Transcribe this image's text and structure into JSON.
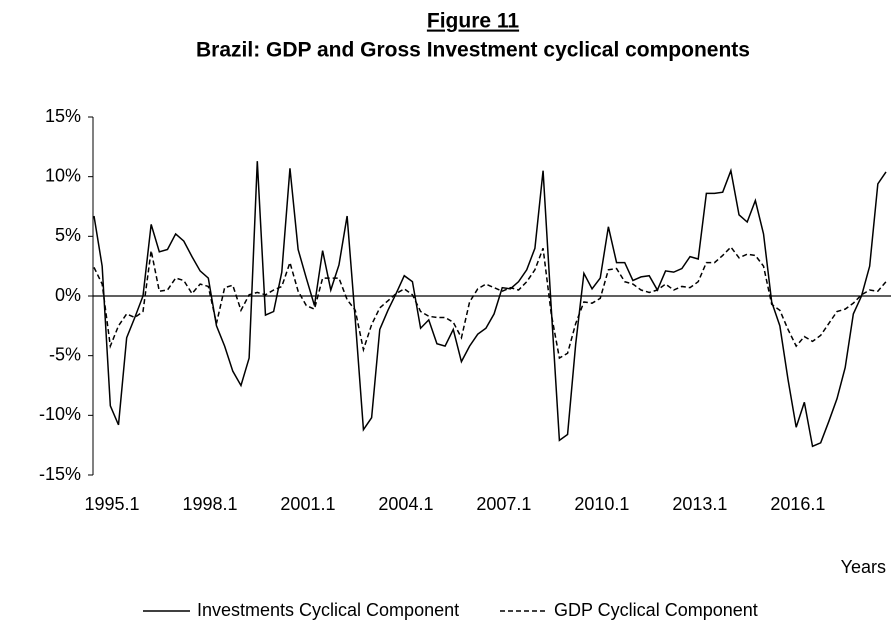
{
  "chart_data": {
    "type": "line",
    "title": "Figure 11",
    "subtitle": "Brazil: GDP and Gross Investment cyclical components",
    "x_label": "Years",
    "categories": [
      "1995.1",
      null,
      null,
      null,
      null,
      null,
      null,
      null,
      null,
      null,
      null,
      null,
      "1998.1",
      null,
      null,
      null,
      null,
      null,
      null,
      null,
      null,
      null,
      null,
      null,
      "2001.1",
      null,
      null,
      null,
      null,
      null,
      null,
      null,
      null,
      null,
      null,
      null,
      "2004.1",
      null,
      null,
      null,
      null,
      null,
      null,
      null,
      null,
      null,
      null,
      null,
      "2007.1",
      null,
      null,
      null,
      null,
      null,
      null,
      null,
      null,
      null,
      null,
      null,
      "2010.1",
      null,
      null,
      null,
      null,
      null,
      null,
      null,
      null,
      null,
      null,
      null,
      "2013.1",
      null,
      null,
      null,
      null,
      null,
      null,
      null,
      null,
      null,
      null,
      null,
      "2016.1",
      null,
      null,
      null,
      null,
      null,
      null,
      null,
      null,
      null,
      null,
      null,
      null,
      null
    ],
    "series": [
      {
        "name": "Investments Cyclical Component",
        "color": "#000000",
        "dash": "solid",
        "values": [
          6.7,
          2.5,
          -9.2,
          -10.8,
          -3.5,
          -1.8,
          0,
          6.0,
          3.7,
          3.9,
          5.2,
          4.6,
          3.3,
          2.1,
          1.5,
          -2.5,
          -4.2,
          -6.3,
          -7.5,
          -5.2,
          11.3,
          -1.6,
          -1.3,
          2.0,
          10.7,
          3.9,
          1.5,
          -0.8,
          3.8,
          0.5,
          2.6,
          6.7,
          -2,
          -11.2,
          -10.2,
          -2.8,
          -1.2,
          0.2,
          1.7,
          1.2,
          -2.7,
          -2.0,
          -4.0,
          -4.2,
          -2.8,
          -5.5,
          -4.2,
          -3.2,
          -2.7,
          -1.5,
          0.7,
          0.6,
          1.2,
          2.2,
          4.0,
          10.5,
          -1,
          -12.1,
          -11.6,
          -4.0,
          1.9,
          0.6,
          1.5,
          5.8,
          2.8,
          2.8,
          1.3,
          1.6,
          1.7,
          0.5,
          2.1,
          2.0,
          2.3,
          3.3,
          3.1,
          8.6,
          8.6,
          8.7,
          10.5,
          6.8,
          6.2,
          8.0,
          5.2,
          -0.5,
          -2.5,
          -7.0,
          -11.0,
          -8.9,
          -12.6,
          -12.3,
          -10.5,
          -8.6,
          -6.0,
          -1.5,
          0.0,
          2.5,
          9.4,
          10.4
        ]
      },
      {
        "name": "GDP Cyclical Component",
        "color": "#000000",
        "dash": "dashed",
        "values": [
          2.4,
          1.0,
          -4.2,
          -2.5,
          -1.5,
          -1.8,
          -1.3,
          3.8,
          0.4,
          0.5,
          1.5,
          1.3,
          0.2,
          1.0,
          0.8,
          -2.3,
          0.7,
          0.9,
          -1.2,
          0.1,
          0.3,
          0.1,
          0.5,
          0.8,
          2.8,
          0.4,
          -0.8,
          -1.1,
          1.5,
          1.5,
          1.5,
          -0.3,
          -1.2,
          -4.5,
          -2.4,
          -1.0,
          -0.4,
          0.2,
          0.6,
          0.1,
          -1.3,
          -1.7,
          -1.8,
          -1.8,
          -2.2,
          -3.5,
          -0.5,
          0.6,
          1.0,
          0.7,
          0.4,
          0.7,
          0.5,
          1.2,
          2.2,
          4.0,
          -1.5,
          -5.2,
          -4.8,
          -2.3,
          -0.5,
          -0.6,
          -0.2,
          2.2,
          2.3,
          1.2,
          1.0,
          0.5,
          0.3,
          0.5,
          1.0,
          0.5,
          0.8,
          0.7,
          1.2,
          2.8,
          2.8,
          3.4,
          4.1,
          3.2,
          3.5,
          3.4,
          2.5,
          -0.7,
          -1.2,
          -2.8,
          -4.2,
          -3.4,
          -3.8,
          -3.3,
          -2.3,
          -1.3,
          -1.1,
          -0.6,
          0.1,
          0.5,
          0.4,
          1.2
        ]
      }
    ],
    "ylim": [
      -15,
      15
    ],
    "yticks": [
      {
        "value": -15,
        "label": "-15%"
      },
      {
        "value": -10,
        "label": "-10%"
      },
      {
        "value": -5,
        "label": "-5%"
      },
      {
        "value": 0,
        "label": "0%"
      },
      {
        "value": 5,
        "label": "5%"
      },
      {
        "value": 10,
        "label": "10%"
      },
      {
        "value": 15,
        "label": "15%"
      }
    ],
    "grid": false,
    "legend": "bottom"
  }
}
